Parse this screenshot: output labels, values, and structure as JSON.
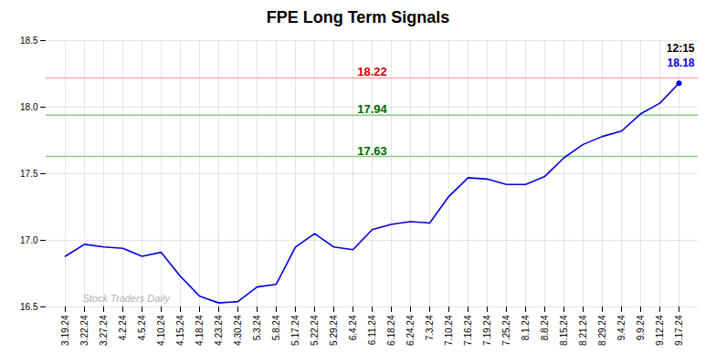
{
  "chart_data": {
    "type": "line",
    "title": "FPE Long Term Signals",
    "categories": [
      "3.19.24",
      "3.22.24",
      "3.27.24",
      "4.2.24",
      "4.5.24",
      "4.10.24",
      "4.15.24",
      "4.18.24",
      "4.23.24",
      "4.30.24",
      "5.3.24",
      "5.8.24",
      "5.17.24",
      "5.22.24",
      "5.29.24",
      "6.4.24",
      "6.11.24",
      "6.18.24",
      "6.24.24",
      "7.3.24",
      "7.10.24",
      "7.16.24",
      "7.19.24",
      "7.25.24",
      "8.1.24",
      "8.8.24",
      "8.15.24",
      "8.21.24",
      "8.29.24",
      "9.4.24",
      "9.9.24",
      "9.12.24",
      "9.17.24"
    ],
    "values": [
      16.88,
      16.97,
      16.95,
      16.94,
      16.88,
      16.91,
      16.73,
      16.58,
      16.53,
      16.54,
      16.65,
      16.67,
      16.95,
      17.05,
      16.95,
      16.93,
      17.08,
      17.12,
      17.14,
      17.13,
      17.33,
      17.47,
      17.46,
      17.42,
      17.42,
      17.48,
      17.62,
      17.72,
      17.78,
      17.82,
      17.95,
      18.03,
      18.18
    ],
    "color": "#0000dd",
    "ylim": [
      16.5,
      18.5
    ],
    "yticks": [
      16.5,
      {
        "value": 17,
        "label": "17.0"
      },
      17.5,
      {
        "value": 18,
        "label": "18.0"
      },
      18.5
    ],
    "grid": true,
    "hlines": [
      {
        "value": 18.22,
        "label": "18.22",
        "color": "#ffaaaa",
        "label_color": "#cc0000"
      },
      {
        "value": 17.94,
        "label": "17.94",
        "color": "#88cc88",
        "label_color": "#006600"
      },
      {
        "value": 17.63,
        "label": "17.63",
        "color": "#88cc88",
        "label_color": "#006600"
      }
    ],
    "time_label": "12:15",
    "price_label": "18.18",
    "watermark": "Stock Traders Daily"
  }
}
